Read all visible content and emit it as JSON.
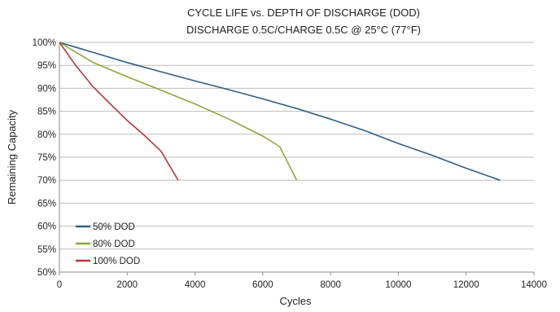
{
  "chart_data": {
    "type": "line",
    "title": "CYCLE LIFE vs. DEPTH OF DISCHARGE (DOD)",
    "subtitle": "DISCHARGE 0.5C/CHARGE 0.5C @ 25°C (77°F)",
    "xlabel": "Cycles",
    "ylabel": "Remaining Capacity",
    "xlim": [
      0,
      14000
    ],
    "ylim": [
      50,
      100
    ],
    "x_ticks": [
      0,
      2000,
      4000,
      6000,
      8000,
      10000,
      12000,
      14000
    ],
    "x_tick_labels": [
      "0",
      "2000",
      "4000",
      "6000",
      "8000",
      "10000",
      "12000",
      "14000"
    ],
    "y_ticks": [
      50,
      55,
      60,
      65,
      70,
      75,
      80,
      85,
      90,
      95,
      100
    ],
    "y_tick_labels": [
      "50%",
      "55%",
      "60%",
      "65%",
      "70%",
      "75%",
      "80%",
      "85%",
      "90%",
      "95%",
      "100%"
    ],
    "grid": "horizontal",
    "legend_position": "bottom-left",
    "series": [
      {
        "name": "50% DOD",
        "color": "#2e5f85",
        "points": [
          [
            0,
            100
          ],
          [
            500,
            98.9
          ],
          [
            1000,
            97.8
          ],
          [
            2000,
            95.6
          ],
          [
            3000,
            93.6
          ],
          [
            4000,
            91.6
          ],
          [
            5000,
            89.7
          ],
          [
            6000,
            87.7
          ],
          [
            7000,
            85.6
          ],
          [
            8000,
            83.3
          ],
          [
            9000,
            80.8
          ],
          [
            10000,
            78.0
          ],
          [
            11000,
            75.4
          ],
          [
            12000,
            72.6
          ],
          [
            13000,
            70.0
          ]
        ]
      },
      {
        "name": "80% DOD",
        "color": "#8aa83a",
        "points": [
          [
            0,
            100
          ],
          [
            500,
            97.8
          ],
          [
            1000,
            95.6
          ],
          [
            2000,
            92.5
          ],
          [
            3000,
            89.6
          ],
          [
            4000,
            86.6
          ],
          [
            5000,
            83.3
          ],
          [
            6000,
            79.6
          ],
          [
            6500,
            77.3
          ],
          [
            7000,
            70.0
          ]
        ]
      },
      {
        "name": "100% DOD",
        "color": "#b03a3a",
        "points": [
          [
            0,
            100
          ],
          [
            500,
            94.8
          ],
          [
            1000,
            90.3
          ],
          [
            1500,
            86.6
          ],
          [
            2000,
            83.0
          ],
          [
            2500,
            79.8
          ],
          [
            3000,
            76.3
          ],
          [
            3500,
            70.0
          ]
        ]
      }
    ]
  }
}
